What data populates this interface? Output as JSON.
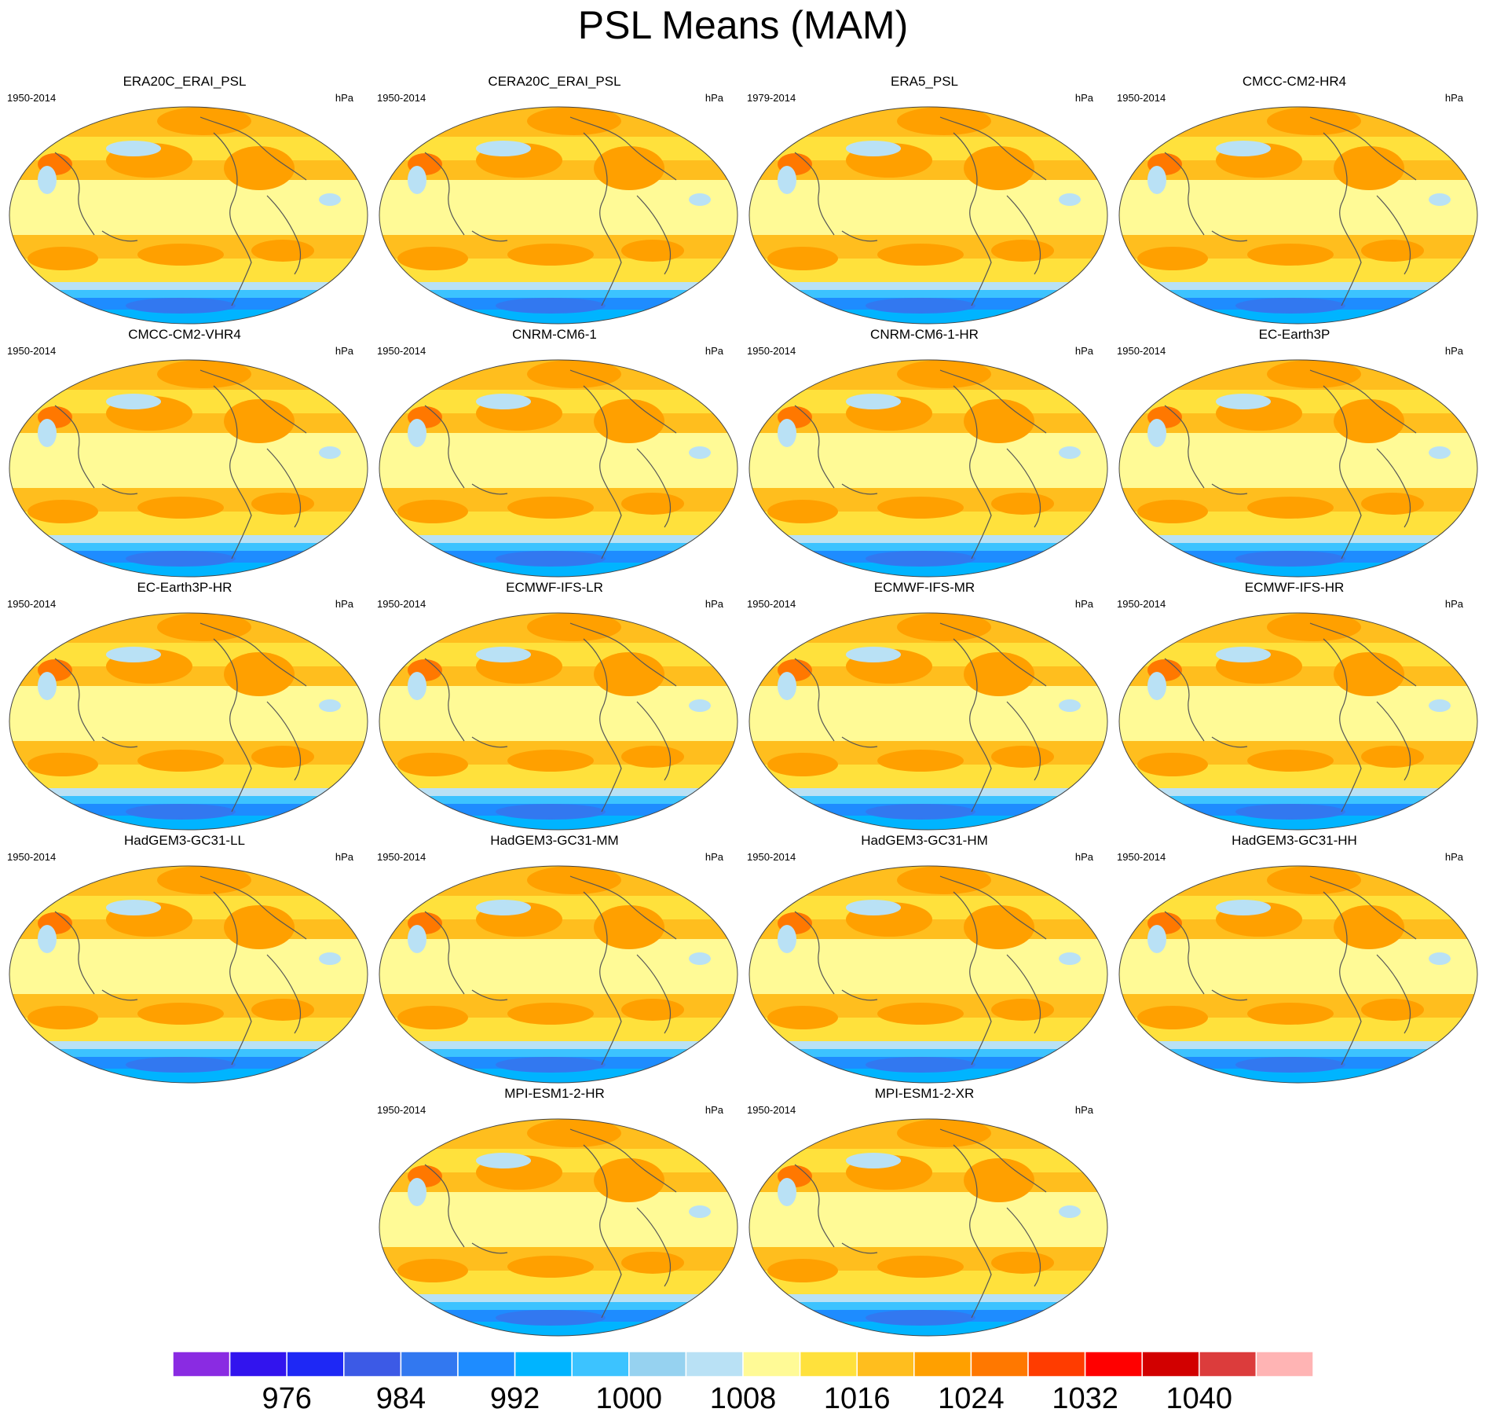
{
  "title": "PSL Means (MAM)",
  "panels": [
    {
      "name": "ERA20C_ERAI_PSL",
      "years": "1950-2014",
      "units": "hPa"
    },
    {
      "name": "CERA20C_ERAI_PSL",
      "years": "1950-2014",
      "units": "hPa"
    },
    {
      "name": "ERA5_PSL",
      "years": "1979-2014",
      "units": "hPa"
    },
    {
      "name": "CMCC-CM2-HR4",
      "years": "1950-2014",
      "units": "hPa"
    },
    {
      "name": "CMCC-CM2-VHR4",
      "years": "1950-2014",
      "units": "hPa"
    },
    {
      "name": "CNRM-CM6-1",
      "years": "1950-2014",
      "units": "hPa"
    },
    {
      "name": "CNRM-CM6-1-HR",
      "years": "1950-2014",
      "units": "hPa"
    },
    {
      "name": "EC-Earth3P",
      "years": "1950-2014",
      "units": "hPa"
    },
    {
      "name": "EC-Earth3P-HR",
      "years": "1950-2014",
      "units": "hPa"
    },
    {
      "name": "ECMWF-IFS-LR",
      "years": "1950-2014",
      "units": "hPa"
    },
    {
      "name": "ECMWF-IFS-MR",
      "years": "1950-2014",
      "units": "hPa"
    },
    {
      "name": "ECMWF-IFS-HR",
      "years": "1950-2014",
      "units": "hPa"
    },
    {
      "name": "HadGEM3-GC31-LL",
      "years": "1950-2014",
      "units": "hPa"
    },
    {
      "name": "HadGEM3-GC31-MM",
      "years": "1950-2014",
      "units": "hPa"
    },
    {
      "name": "HadGEM3-GC31-HM",
      "years": "1950-2014",
      "units": "hPa"
    },
    {
      "name": "HadGEM3-GC31-HH",
      "years": "1950-2014",
      "units": "hPa"
    },
    {
      "name": "MPI-ESM1-2-HR",
      "years": "1950-2014",
      "units": "hPa"
    },
    {
      "name": "MPI-ESM1-2-XR",
      "years": "1950-2014",
      "units": "hPa"
    }
  ],
  "colorbar": {
    "colors": [
      "#8a2be2",
      "#3214ee",
      "#1e28f5",
      "#3c5ae6",
      "#3278f0",
      "#1e8cff",
      "#00b4ff",
      "#3cc3ff",
      "#96d2f0",
      "#b9e1f5",
      "#fffa96",
      "#ffe13c",
      "#ffbe1e",
      "#ffa000",
      "#ff7800",
      "#ff3c00",
      "#ff0000",
      "#d20000",
      "#dc3c3c",
      "#ffb4b4"
    ],
    "labels": [
      "976",
      "984",
      "992",
      "1000",
      "1008",
      "1016",
      "1024",
      "1032",
      "1040"
    ]
  }
}
